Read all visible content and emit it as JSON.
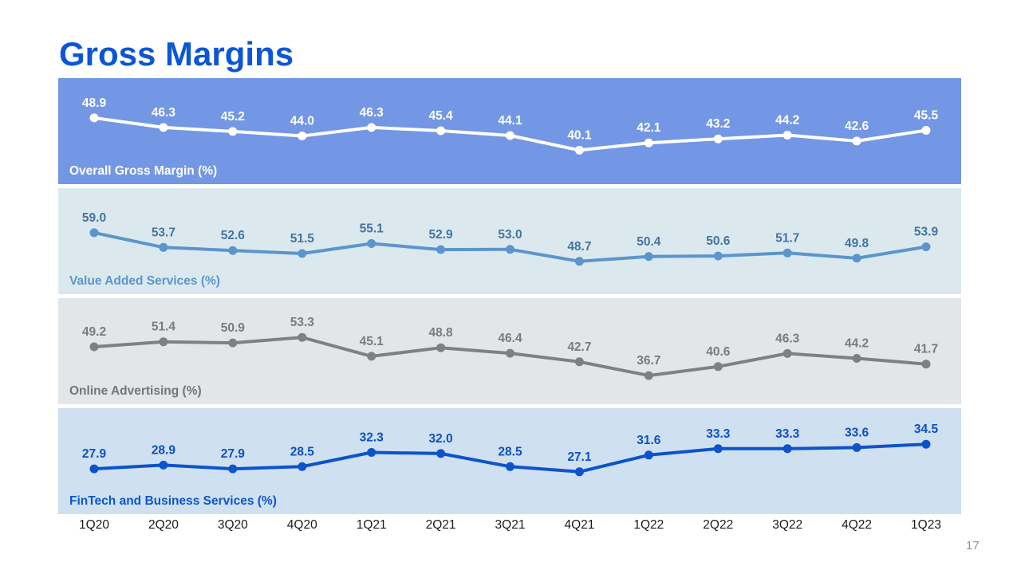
{
  "page": {
    "title": "Gross Margins",
    "title_color": "#0b56d6",
    "page_number": "17",
    "background": "#ffffff"
  },
  "chart_data": {
    "type": "line",
    "title": "Gross Margins",
    "grid": false,
    "value_labels": true,
    "legend_position": "inside-band-bottom-left",
    "categories": [
      "1Q20",
      "2Q20",
      "3Q20",
      "4Q20",
      "1Q21",
      "2Q21",
      "3Q21",
      "4Q21",
      "1Q22",
      "2Q22",
      "3Q22",
      "4Q22",
      "1Q23"
    ],
    "series": [
      {
        "name": "Overall Gross Margin (%)",
        "values": [
          48.9,
          46.3,
          45.2,
          44.0,
          46.3,
          45.4,
          44.1,
          40.1,
          42.1,
          43.2,
          44.2,
          42.6,
          45.5
        ],
        "band_bg": "#7397e4",
        "line_color": "#ffffff",
        "point_color": "#ffffff",
        "value_label_color": "#ffffff",
        "name_color": "#ffffff"
      },
      {
        "name": "Value Added Services (%)",
        "values": [
          59.0,
          53.7,
          52.6,
          51.5,
          55.1,
          52.9,
          53.0,
          48.7,
          50.4,
          50.6,
          51.7,
          49.8,
          53.9
        ],
        "band_bg": "#dbe9ef",
        "line_color": "#5c95cb",
        "point_color": "#5c95cb",
        "value_label_color": "#44749f",
        "name_color": "#5c95cb"
      },
      {
        "name": "Online Advertising (%)",
        "values": [
          49.2,
          51.4,
          50.9,
          53.3,
          45.1,
          48.8,
          46.4,
          42.7,
          36.7,
          40.6,
          46.3,
          44.2,
          41.7
        ],
        "band_bg": "#e3e6e9",
        "line_color": "#7e8083",
        "point_color": "#7e8083",
        "value_label_color": "#797b7e",
        "name_color": "#737578"
      },
      {
        "name": "FinTech and Business Services (%)",
        "values": [
          27.9,
          28.9,
          27.9,
          28.5,
          32.3,
          32.0,
          28.5,
          27.1,
          31.6,
          33.3,
          33.3,
          33.6,
          34.5
        ],
        "band_bg": "#cfe0f1",
        "line_color": "#0d53ca",
        "point_color": "#0d53ca",
        "value_label_color": "#0c50c5",
        "name_color": "#0d55cc"
      }
    ]
  }
}
